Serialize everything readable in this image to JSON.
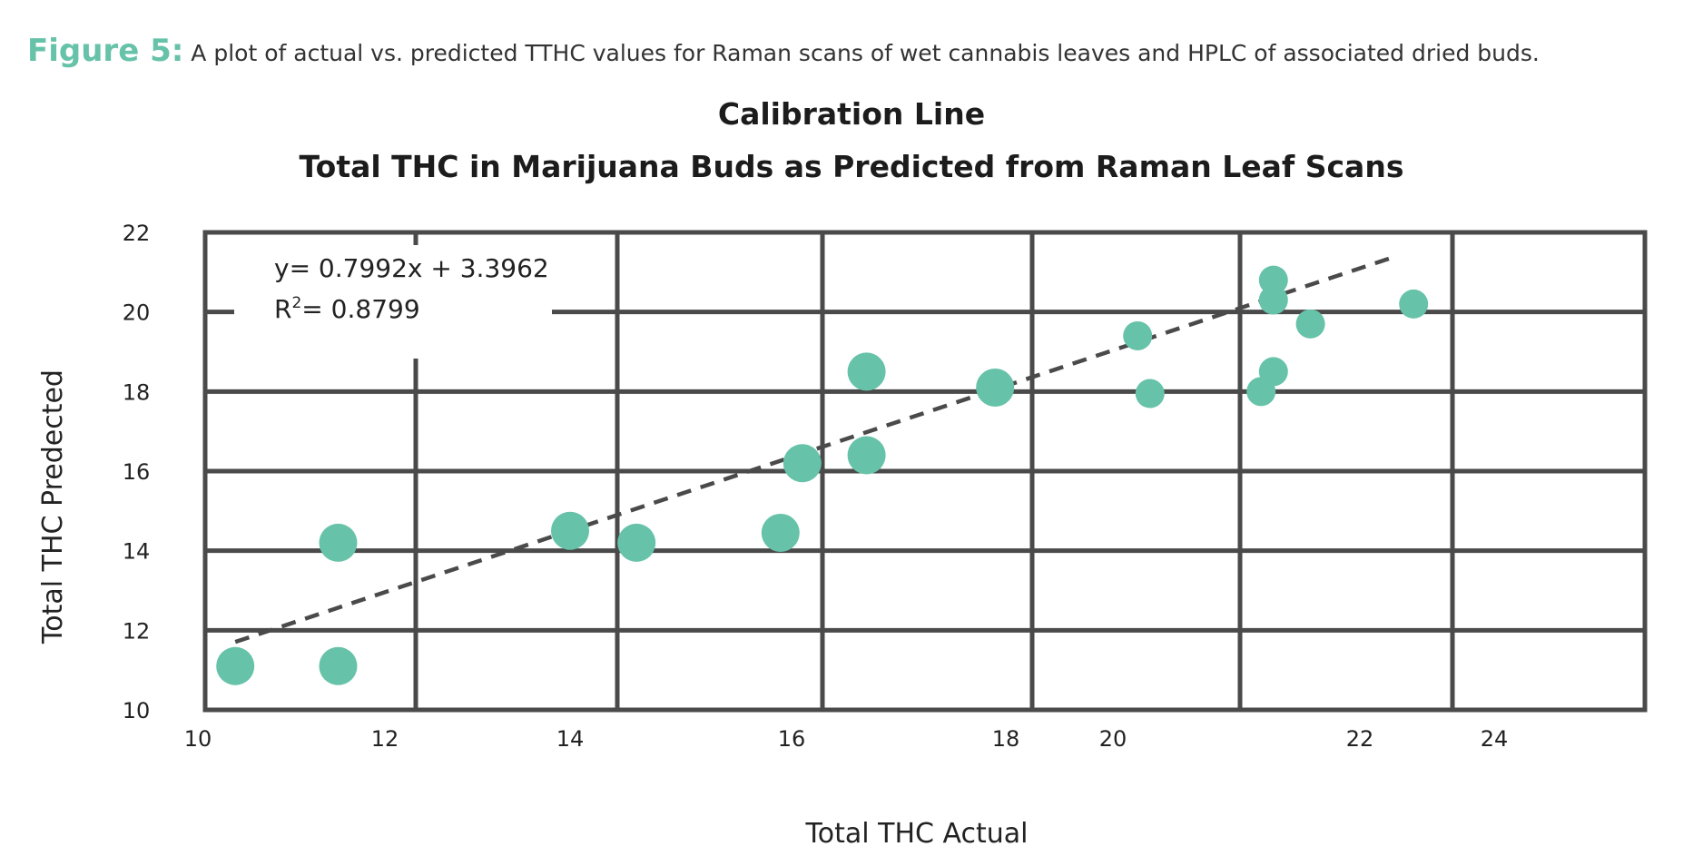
{
  "caption": {
    "label": "Figure 5:",
    "text": "A plot of actual vs. predicted TTHC values for Raman scans of wet cannabis leaves and HPLC of associated dried buds."
  },
  "colors": {
    "accent": "#66c2a8",
    "grid": "#4a4a4a",
    "trendline": "#4a4a4a"
  },
  "chart_data": {
    "type": "scatter",
    "title": "Calibration Line",
    "subtitle": "Total THC in Marijuana Buds as Predicted from Raman Leaf Scans",
    "xlabel": "Total THC Actual",
    "ylabel": "Total THC Predected",
    "x_ticks": [
      "10",
      "12",
      "14",
      "16",
      "18",
      "20",
      "22",
      "24"
    ],
    "y_ticks": [
      "10",
      "12",
      "14",
      "16",
      "18",
      "20",
      "22"
    ],
    "ylim": [
      10,
      22
    ],
    "grid": true,
    "equation": "y= 0.7992x + 3.3962",
    "r2_label": "R",
    "r2_sup": "2",
    "r2_value": "= 0.8799",
    "trendline": {
      "slope": 0.7992,
      "intercept": 3.3962,
      "x_range": [
        10.4,
        22.5
      ],
      "style": "dashed"
    },
    "points": [
      {
        "x": 10.4,
        "y": 11.1
      },
      {
        "x": 11.5,
        "y": 11.1
      },
      {
        "x": 11.5,
        "y": 14.2
      },
      {
        "x": 14.0,
        "y": 14.5
      },
      {
        "x": 14.6,
        "y": 14.2
      },
      {
        "x": 15.9,
        "y": 14.45
      },
      {
        "x": 16.1,
        "y": 16.2
      },
      {
        "x": 16.7,
        "y": 18.5
      },
      {
        "x": 16.7,
        "y": 16.4
      },
      {
        "x": 17.9,
        "y": 18.1
      },
      {
        "x": 20.2,
        "y": 19.4
      },
      {
        "x": 20.3,
        "y": 17.95
      },
      {
        "x": 21.2,
        "y": 18.0
      },
      {
        "x": 21.3,
        "y": 18.5
      },
      {
        "x": 21.3,
        "y": 20.8
      },
      {
        "x": 21.3,
        "y": 20.3
      },
      {
        "x": 21.6,
        "y": 19.7
      },
      {
        "x": 22.8,
        "y": 20.2
      }
    ]
  }
}
